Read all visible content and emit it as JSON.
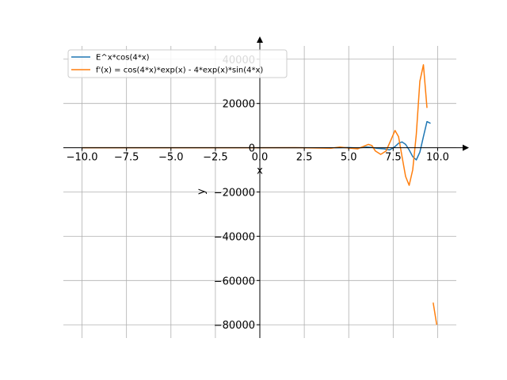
{
  "chart_data": {
    "type": "line",
    "title": "",
    "xlabel": "x",
    "ylabel": "y",
    "xlim": [
      -11.05,
      11.05
    ],
    "ylim": [
      -86000,
      46000
    ],
    "grid": true,
    "legend_position": "top-left",
    "x_ticks": [
      -10.0,
      -7.5,
      -5.0,
      -2.5,
      0.0,
      2.5,
      5.0,
      7.5,
      10.0
    ],
    "x_tick_labels": [
      "−10.0",
      "−7.5",
      "−5.0",
      "−2.5",
      "0.0",
      "2.5",
      "5.0",
      "7.5",
      "10.0"
    ],
    "y_ticks": [
      -80000,
      -60000,
      -40000,
      -20000,
      0,
      20000,
      40000
    ],
    "y_tick_labels": [
      "−80000",
      "−60000",
      "−40000",
      "−20000",
      "0",
      "20000",
      "40000"
    ],
    "series": [
      {
        "name": "E^x*cos(4*x)",
        "color": "#1f77b4",
        "x": [
          -10.0,
          -2.0,
          0.0,
          2.0,
          4.0,
          5.0,
          5.5,
          6.0,
          6.3,
          6.6,
          7.0,
          7.3,
          7.6,
          7.8,
          8.0,
          8.2,
          8.4,
          8.6,
          8.8,
          9.0,
          9.2,
          9.4,
          9.6
        ],
        "y": [
          0,
          0,
          1,
          -1,
          -40,
          60,
          -150,
          300,
          150,
          -300,
          -500,
          -1000,
          500,
          2000,
          2600,
          1500,
          -1000,
          -4000,
          -5500,
          -2000,
          5000,
          11800,
          11000
        ]
      },
      {
        "name": "f'(x) = cos(4*x)*exp(x) - 4*exp(x)*sin(4*x)",
        "color": "#ff7f0e",
        "x": [
          -10.0,
          -2.0,
          0.0,
          2.0,
          4.0,
          4.5,
          5.0,
          5.5,
          5.8,
          6.1,
          6.3,
          6.5,
          6.8,
          7.1,
          7.4,
          7.6,
          7.8,
          8.0,
          8.2,
          8.4,
          8.6,
          8.8,
          9.0,
          9.2,
          9.4,
          9.6
        ],
        "y": [
          0,
          0,
          1,
          30,
          -200,
          300,
          -150,
          -500,
          500,
          1500,
          1000,
          -1500,
          -3000,
          -1500,
          4000,
          7800,
          5000,
          -4000,
          -13000,
          -17000,
          -10000,
          6000,
          30000,
          37500,
          18000,
          null
        ],
        "extra_segment": {
          "x": [
            9.75,
            9.95
          ],
          "y": [
            -70000,
            -80000
          ]
        }
      }
    ]
  }
}
